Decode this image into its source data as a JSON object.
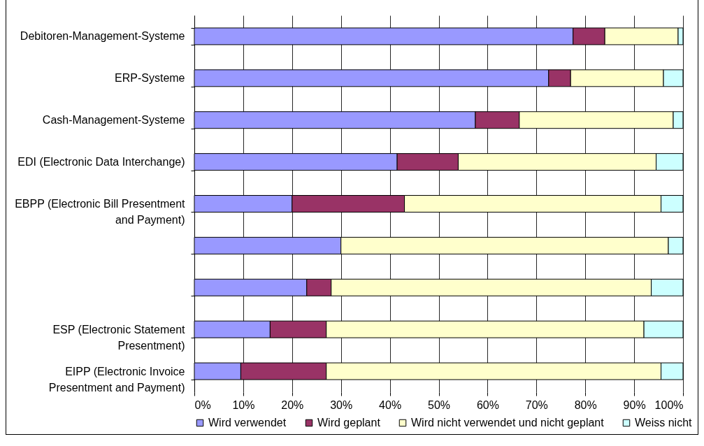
{
  "chart_data": {
    "type": "bar",
    "orientation": "horizontal",
    "stacked": true,
    "categories": [
      "Debitoren-Management-Systeme",
      "ERP-Systeme",
      "Cash-Management-Systeme",
      "EDI (Electronic Data Interchange)",
      "EBPP (Electronic Bill Presentment and Payment)",
      null,
      null,
      "ESP (Electronic Statement Presentment)",
      "EIPP (Electronic Invoice Presentment and Payment)"
    ],
    "series": [
      {
        "name": "Wird verwendet",
        "color": "#9999ff",
        "values": [
          77.5,
          72.5,
          57.5,
          41.5,
          20,
          30,
          23,
          15.5,
          9.5
        ]
      },
      {
        "name": "Wird geplant",
        "color": "#993366",
        "values": [
          6.5,
          4.5,
          9,
          12.5,
          23,
          null,
          5,
          11.5,
          17.5
        ]
      },
      {
        "name": "Wird nicht verwendet und nicht geplant",
        "color": "#ffffcc",
        "values": [
          15,
          19,
          31.5,
          40.5,
          52.5,
          67,
          65.5,
          65,
          68.5
        ]
      },
      {
        "name": "Weiss nicht",
        "color": "#ccffff",
        "values": [
          1,
          4,
          2,
          5.5,
          4.5,
          3,
          6.5,
          8,
          4.5
        ]
      }
    ],
    "xlim": [
      0,
      100
    ],
    "xticks": [
      {
        "value": 0,
        "label": "0%"
      },
      {
        "value": 10,
        "label": "10%"
      },
      {
        "value": 20,
        "label": "20%"
      },
      {
        "value": 30,
        "label": "30%"
      },
      {
        "value": 40,
        "label": "40%"
      },
      {
        "value": 50,
        "label": "50%"
      },
      {
        "value": 60,
        "label": "60%"
      },
      {
        "value": 70,
        "label": "70%"
      },
      {
        "value": 80,
        "label": "80%"
      },
      {
        "value": 90,
        "label": "90%"
      },
      {
        "value": 100,
        "label": "100%"
      }
    ],
    "grid": "x",
    "legend": "bottom"
  }
}
